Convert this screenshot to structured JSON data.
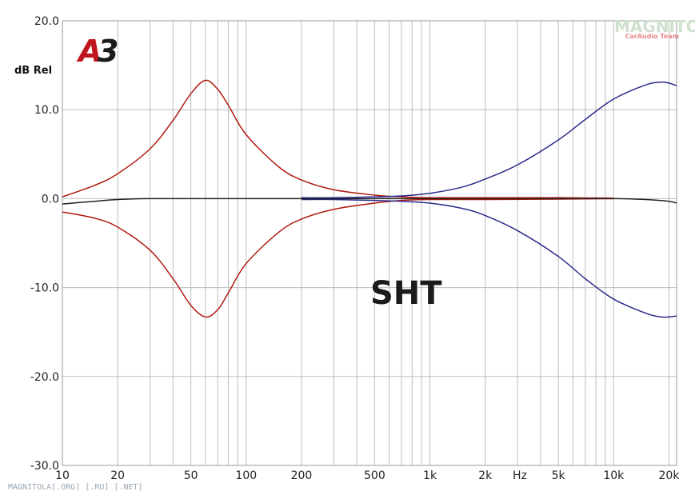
{
  "chart_data": {
    "type": "line",
    "title": "",
    "xlabel": "Hz",
    "ylabel": "dB Rel",
    "x_scale": "log",
    "xlim": [
      10,
      22000
    ],
    "ylim": [
      -30,
      20
    ],
    "grid": true,
    "x_tick_labels": [
      "10",
      "20",
      "50",
      "100",
      "200",
      "500",
      "1k",
      "2k",
      "5k",
      "10k",
      "20k"
    ],
    "x_tick_values": [
      10,
      20,
      50,
      100,
      200,
      500,
      1000,
      2000,
      5000,
      10000,
      20000
    ],
    "y_tick_labels": [
      "20.0",
      "10.0",
      "0.0",
      "-10.0",
      "-20.0",
      "-30.0"
    ],
    "y_tick_values": [
      20,
      10,
      0,
      -10,
      -20,
      -30
    ],
    "annotation": "SHT",
    "logo_text": {
      "a": "A",
      "three": "3"
    },
    "series": [
      {
        "color": "#b01b10",
        "x": [
          10,
          15,
          20,
          30,
          40,
          50,
          60,
          70,
          80,
          100,
          150,
          200,
          300,
          500,
          700,
          1000,
          2000,
          5000,
          10000
        ],
        "y": [
          0.2,
          1.5,
          2.8,
          5.6,
          8.8,
          11.8,
          13.3,
          12.3,
          10.5,
          7.2,
          3.6,
          2.1,
          1.0,
          0.4,
          0.2,
          0.1,
          0.1,
          0.1,
          0.05
        ]
      },
      {
        "color": "#b01b10",
        "x": [
          10,
          15,
          20,
          30,
          40,
          50,
          60,
          70,
          80,
          100,
          150,
          200,
          300,
          500,
          700,
          1000,
          2000,
          5000,
          10000
        ],
        "y": [
          -1.5,
          -2.2,
          -3.2,
          -5.8,
          -9.0,
          -12.0,
          -13.3,
          -12.5,
          -10.6,
          -7.3,
          -3.8,
          -2.3,
          -1.2,
          -0.5,
          -0.2,
          -0.1,
          -0.1,
          -0.05,
          0.0
        ]
      },
      {
        "color": "#2a2a8c",
        "x": [
          200,
          300,
          500,
          700,
          1000,
          1500,
          2000,
          3000,
          5000,
          7000,
          10000,
          15000,
          18000,
          20000,
          22000
        ],
        "y": [
          0.1,
          0.1,
          0.2,
          0.3,
          0.6,
          1.3,
          2.2,
          3.8,
          6.6,
          8.9,
          11.2,
          12.8,
          13.1,
          13.0,
          12.7
        ]
      },
      {
        "color": "#2a2a8c",
        "x": [
          200,
          300,
          500,
          700,
          1000,
          1500,
          2000,
          3000,
          5000,
          7000,
          10000,
          15000,
          18000,
          20000,
          22000
        ],
        "y": [
          -0.1,
          -0.1,
          -0.2,
          -0.3,
          -0.5,
          -1.1,
          -1.9,
          -3.6,
          -6.5,
          -9.0,
          -11.3,
          -12.9,
          -13.3,
          -13.3,
          -13.2
        ]
      },
      {
        "color": "#222222",
        "x": [
          10,
          15,
          20,
          30,
          50,
          100,
          200,
          500,
          1000,
          2000,
          5000,
          10000,
          15000,
          20000,
          22000
        ],
        "y": [
          -0.6,
          -0.3,
          -0.1,
          0.0,
          0.0,
          0.0,
          0.0,
          0.0,
          0.0,
          0.0,
          0.0,
          0.0,
          -0.1,
          -0.3,
          -0.5
        ]
      }
    ]
  },
  "watermark": {
    "footer": "MAGNITOLA[.ORG] [.RU] [.NET]",
    "brand_top": "MAGNITOLA",
    "brand_bottom": "CarAudio Team"
  }
}
